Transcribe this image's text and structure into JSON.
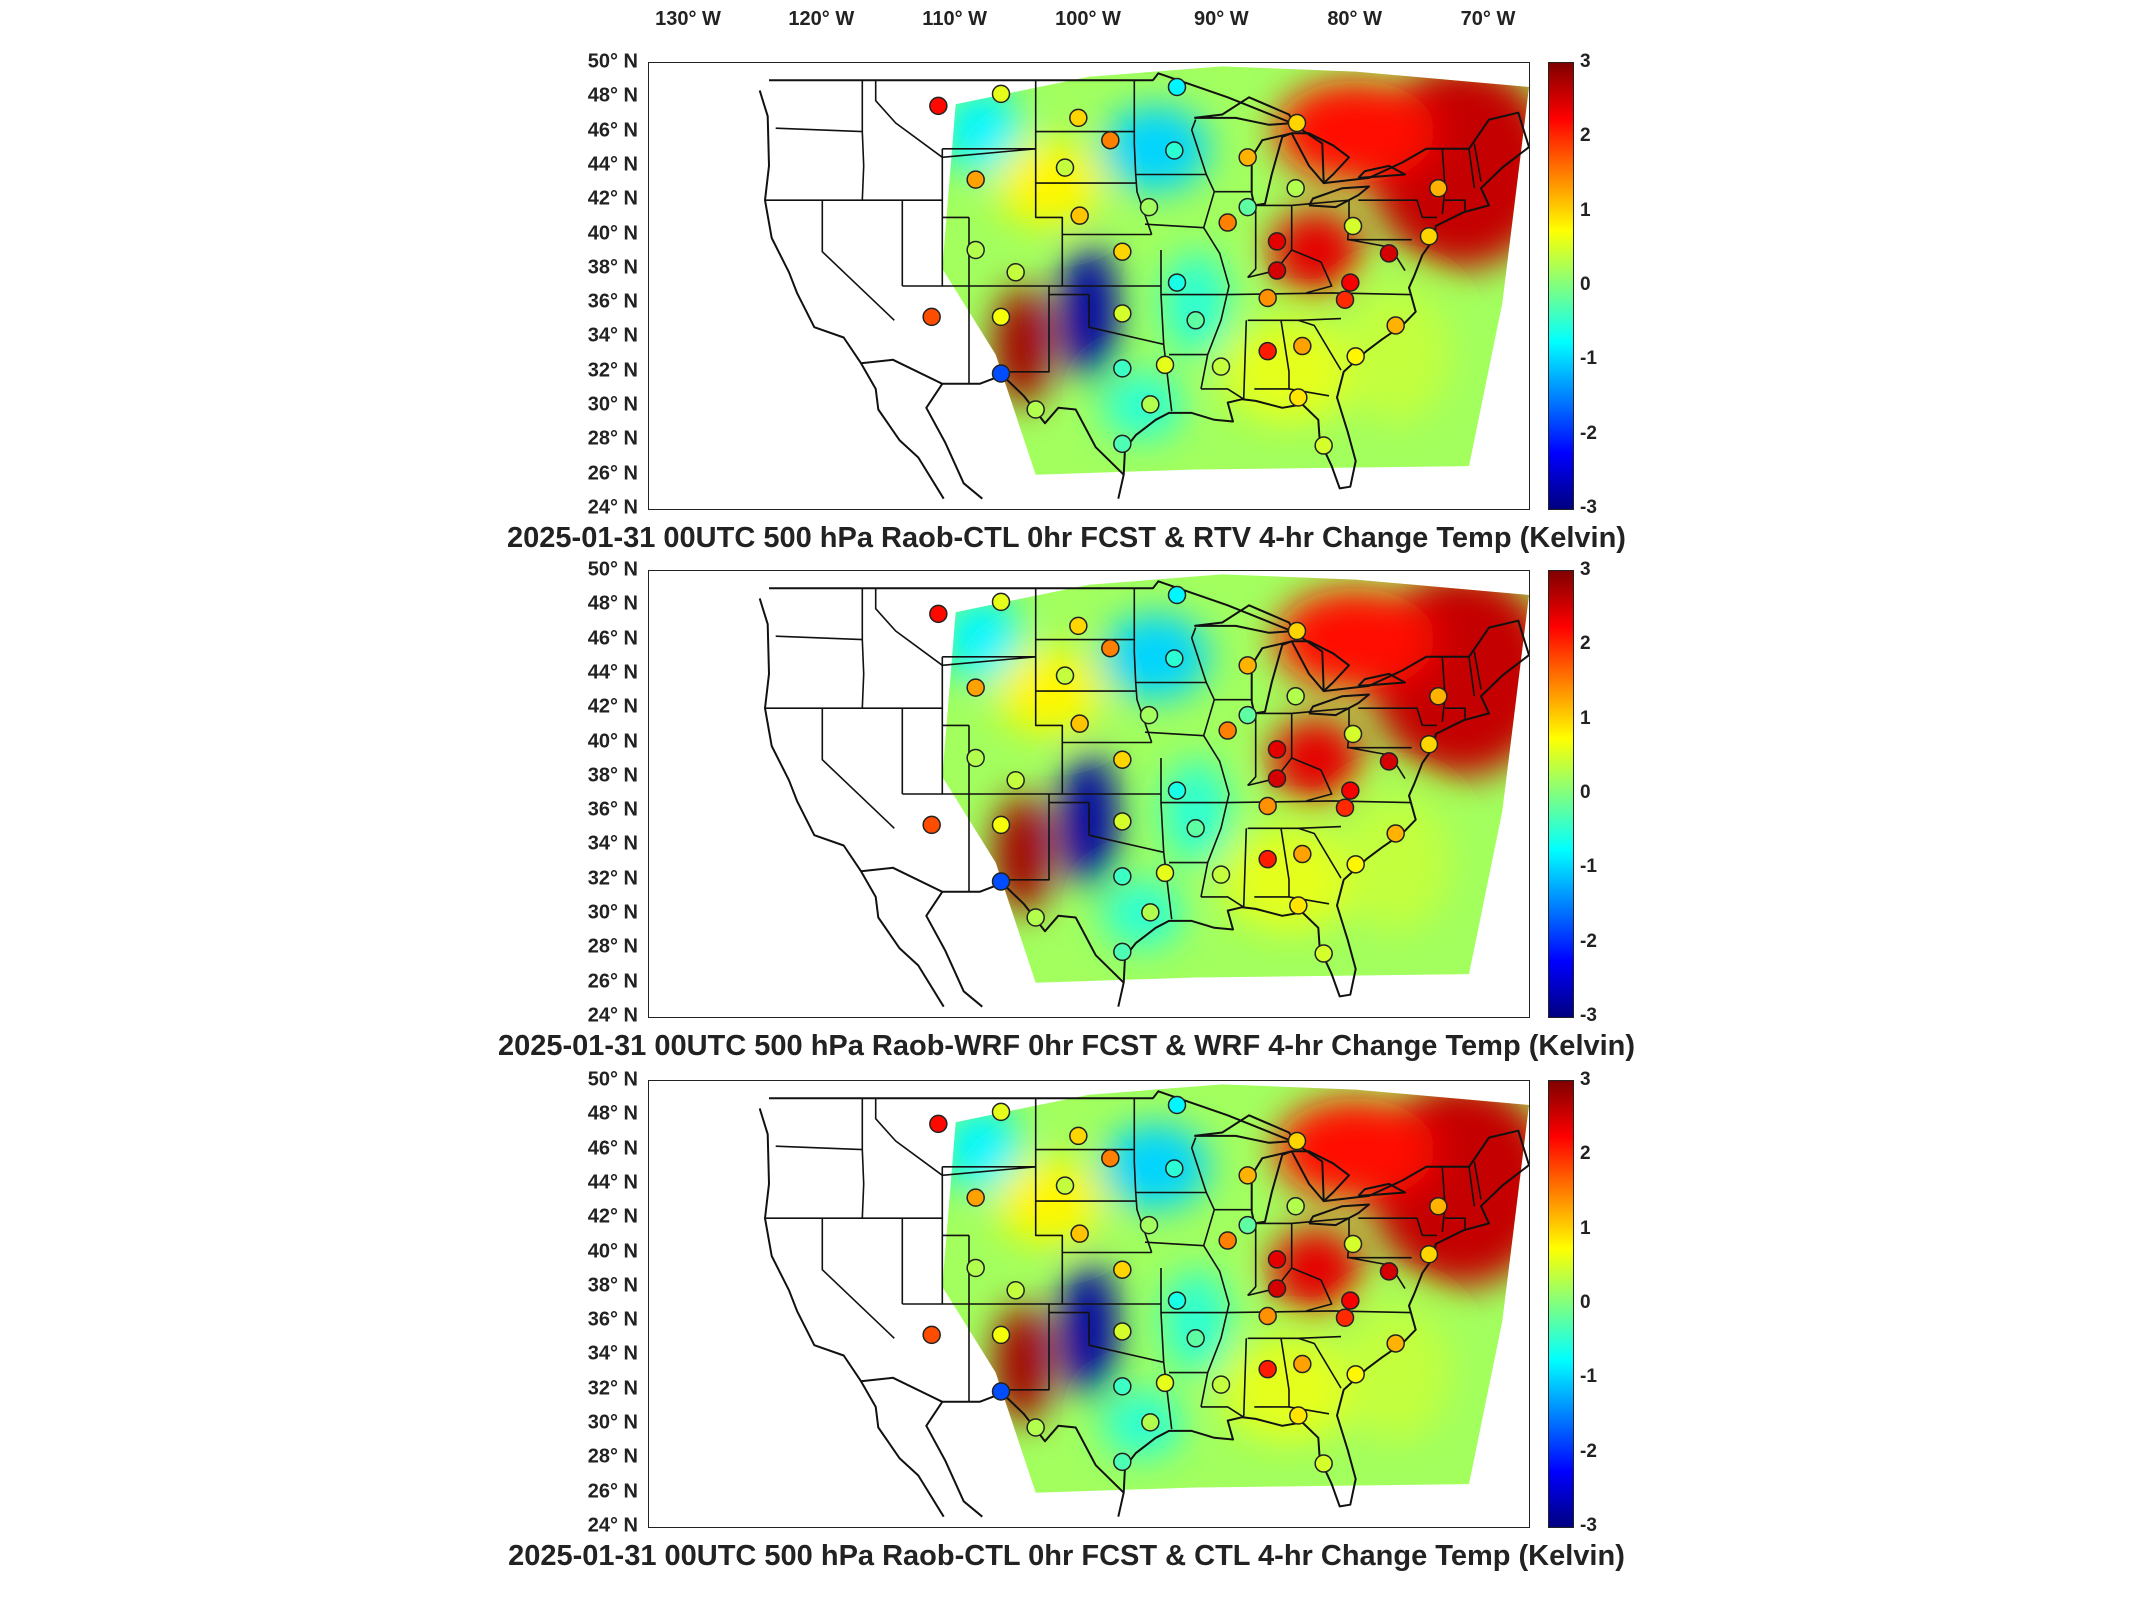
{
  "lon_labels": [
    "130° W",
    "120° W",
    "110° W",
    "100° W",
    "90° W",
    "80° W",
    "70° W"
  ],
  "lat_labels": [
    "50° N",
    "48° N",
    "46° N",
    "44° N",
    "42° N",
    "40° N",
    "38° N",
    "36° N",
    "34° N",
    "32° N",
    "30° N",
    "28° N",
    "26° N",
    "24° N"
  ],
  "colorbar": {
    "ticks": [
      "3",
      "2",
      "1",
      "0",
      "-1",
      "-2",
      "-3"
    ],
    "range": [
      -3,
      3
    ],
    "colormap": "jet",
    "colors": [
      "#800000",
      "#ff0000",
      "#ff8000",
      "#ffff00",
      "#80ff80",
      "#00ffff",
      "#0080ff",
      "#0000ff",
      "#000080"
    ]
  },
  "panels": [
    {
      "title": "2025-01-31 00UTC 500 hPa Raob-CTL 0hr FCST & RTV 4-hr Change Temp (Kelvin)"
    },
    {
      "title": "2025-01-31 00UTC 500 hPa Raob-WRF 0hr FCST & WRF 4-hr Change Temp (Kelvin)"
    },
    {
      "title": "2025-01-31 00UTC 500 hPa Raob-CTL 0hr FCST & CTL 4-hr Change Temp (Kelvin)"
    }
  ],
  "map_data": {
    "lon_range": [
      -133,
      -67
    ],
    "lat_range": [
      24,
      50
    ],
    "field_regions": [
      {
        "name": "northeast-warm",
        "value": 2.6
      },
      {
        "name": "ohio-valley-warm",
        "value": 2.0
      },
      {
        "name": "southwest-warm",
        "value": 2.8
      },
      {
        "name": "southern-plains-cold",
        "value": -2.8
      },
      {
        "name": "upper-midwest-cool",
        "value": -0.9
      },
      {
        "name": "southeast-mild",
        "value": 0.5
      },
      {
        "name": "gulf-cool",
        "value": -0.5
      }
    ],
    "raob_stations": [
      {
        "lat": 47.5,
        "lon": -111.3,
        "value": 2.2
      },
      {
        "lat": 48.2,
        "lon": -106.6,
        "value": 0.6
      },
      {
        "lat": 46.8,
        "lon": -100.8,
        "value": 1.0
      },
      {
        "lat": 45.5,
        "lon": -98.4,
        "value": 1.5
      },
      {
        "lat": 44.9,
        "lon": -93.6,
        "value": -0.5
      },
      {
        "lat": 48.6,
        "lon": -93.4,
        "value": -0.8
      },
      {
        "lat": 44.5,
        "lon": -88.1,
        "value": 1.2
      },
      {
        "lat": 46.5,
        "lon": -84.4,
        "value": 1.0
      },
      {
        "lat": 42.7,
        "lon": -84.5,
        "value": 0.3
      },
      {
        "lat": 43.2,
        "lon": -108.5,
        "value": 1.3
      },
      {
        "lat": 43.9,
        "lon": -101.8,
        "value": 0.4
      },
      {
        "lat": 41.1,
        "lon": -100.7,
        "value": 1.1
      },
      {
        "lat": 41.6,
        "lon": -95.5,
        "value": 0.2
      },
      {
        "lat": 41.6,
        "lon": -88.1,
        "value": -0.2
      },
      {
        "lat": 40.7,
        "lon": -89.6,
        "value": 1.5
      },
      {
        "lat": 39.6,
        "lon": -85.9,
        "value": 2.4
      },
      {
        "lat": 40.5,
        "lon": -80.2,
        "value": 0.5
      },
      {
        "lat": 42.7,
        "lon": -73.8,
        "value": 1.2
      },
      {
        "lat": 39.1,
        "lon": -108.5,
        "value": 0.3
      },
      {
        "lat": 39.0,
        "lon": -97.5,
        "value": 1.0
      },
      {
        "lat": 37.8,
        "lon": -105.5,
        "value": 0.4
      },
      {
        "lat": 37.2,
        "lon": -93.4,
        "value": -0.6
      },
      {
        "lat": 37.9,
        "lon": -85.9,
        "value": 2.5
      },
      {
        "lat": 37.2,
        "lon": -80.4,
        "value": 2.3
      },
      {
        "lat": 38.9,
        "lon": -77.5,
        "value": 2.5
      },
      {
        "lat": 39.9,
        "lon": -74.5,
        "value": 1.0
      },
      {
        "lat": 35.2,
        "lon": -111.8,
        "value": 1.8
      },
      {
        "lat": 35.2,
        "lon": -106.6,
        "value": 0.7
      },
      {
        "lat": 35.4,
        "lon": -97.5,
        "value": 0.5
      },
      {
        "lat": 35.0,
        "lon": -92.0,
        "value": -0.2
      },
      {
        "lat": 36.3,
        "lon": -86.6,
        "value": 1.4
      },
      {
        "lat": 36.2,
        "lon": -80.8,
        "value": 2.0
      },
      {
        "lat": 34.7,
        "lon": -77.0,
        "value": 1.2
      },
      {
        "lat": 31.9,
        "lon": -106.6,
        "value": -1.8
      },
      {
        "lat": 32.2,
        "lon": -97.5,
        "value": -0.4
      },
      {
        "lat": 32.4,
        "lon": -94.3,
        "value": 0.6
      },
      {
        "lat": 32.3,
        "lon": -90.1,
        "value": 0.4
      },
      {
        "lat": 33.2,
        "lon": -86.6,
        "value": 2.1
      },
      {
        "lat": 33.5,
        "lon": -84.0,
        "value": 1.3
      },
      {
        "lat": 32.9,
        "lon": -80.0,
        "value": 0.8
      },
      {
        "lat": 30.5,
        "lon": -84.3,
        "value": 0.9
      },
      {
        "lat": 30.1,
        "lon": -95.4,
        "value": 0.3
      },
      {
        "lat": 27.8,
        "lon": -97.5,
        "value": -0.3
      },
      {
        "lat": 27.7,
        "lon": -82.4,
        "value": 0.5
      },
      {
        "lat": 29.8,
        "lon": -104.0,
        "value": 0.3
      }
    ]
  }
}
